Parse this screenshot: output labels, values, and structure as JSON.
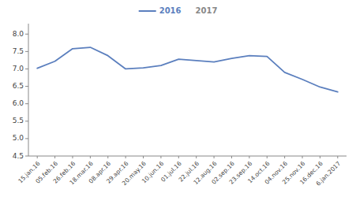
{
  "chart_data": {
    "type": "line",
    "categories": [
      "15.jan.16",
      "05.feb.16",
      "26.feb.16",
      "18.mar.16",
      "08.apr.16",
      "29.apr.16",
      "20.may.16",
      "10.jun.16",
      "01.jul.16",
      "22.jul.16",
      "12.aug.16",
      "02.sep.16",
      "23.sep.16",
      "14.oct.16",
      "04.nov.16",
      "25.nov.16",
      "16.dec.16",
      "6.jan.2017"
    ],
    "series": [
      {
        "name": "2016",
        "color": "#5b7fbe",
        "values": [
          7.02,
          7.22,
          7.58,
          7.62,
          7.38,
          7.0,
          7.03,
          7.1,
          7.28,
          7.24,
          7.2,
          7.3,
          7.38,
          7.36,
          6.9,
          6.7,
          6.48,
          6.34
        ]
      },
      {
        "name": "2017",
        "color": "#888888",
        "values": [
          null,
          null,
          null,
          null,
          null,
          null,
          null,
          null,
          null,
          null,
          null,
          null,
          null,
          null,
          null,
          null,
          null,
          null
        ]
      }
    ],
    "ylim": [
      4.5,
      8.3
    ],
    "yticks": [
      4.5,
      {
        "value": 5,
        "label": "5.0"
      },
      5.5,
      {
        "value": 6,
        "label": "6.0"
      },
      6.5,
      {
        "value": 7,
        "label": "7.0"
      },
      7.5,
      {
        "value": 8,
        "label": "8.0"
      }
    ],
    "grid": false,
    "legend": "top"
  }
}
